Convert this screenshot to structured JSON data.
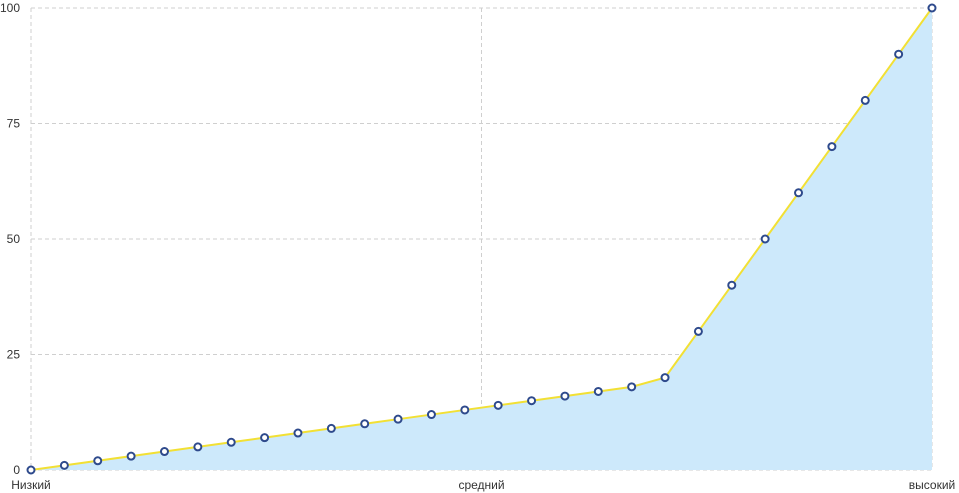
{
  "colors": {
    "line": "#f2e034",
    "area_fill": "#cde9fb",
    "marker_stroke": "#2e4a8c",
    "marker_fill": "#ffffff",
    "grid": "#cfcfcf",
    "text": "#333333"
  },
  "chart_data": {
    "type": "area",
    "title": "",
    "xlabel": "",
    "ylabel": "",
    "ylim": [
      0,
      100
    ],
    "y_ticks": [
      "0",
      "25",
      "50",
      "75",
      "100"
    ],
    "x_tick_labels": [
      "Низкий",
      "средний",
      "высокий"
    ],
    "x_tick_positions": [
      0,
      13.5,
      27
    ],
    "grid": true,
    "legend": "none",
    "x": [
      0,
      1,
      2,
      3,
      4,
      5,
      6,
      7,
      8,
      9,
      10,
      11,
      12,
      13,
      14,
      15,
      16,
      17,
      18,
      19,
      20,
      21,
      22,
      23,
      24,
      25,
      26,
      27
    ],
    "values": [
      0,
      1,
      2,
      3,
      4,
      5,
      6,
      7,
      8,
      9,
      10,
      11,
      12,
      13,
      14,
      15,
      16,
      17,
      18,
      20,
      30,
      40,
      50,
      60,
      70,
      80,
      90,
      100
    ]
  }
}
